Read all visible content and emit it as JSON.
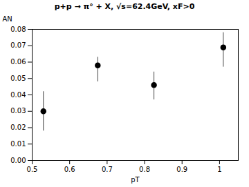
{
  "chart_data": {
    "type": "scatter",
    "title": "p+p → π° + X, √s=62.4GeV, xF>0",
    "xlabel": "pT",
    "ylabel": "AN",
    "x": [
      0.53,
      0.675,
      0.825,
      1.01
    ],
    "values": [
      0.03,
      0.058,
      0.046,
      0.069
    ],
    "yerr_lo": [
      0.012,
      0.01,
      0.009,
      0.012
    ],
    "yerr_hi": [
      0.012,
      0.005,
      0.008,
      0.009
    ],
    "color": "#000000",
    "marker": "circle",
    "xlim": [
      0.5,
      1.05
    ],
    "ylim": [
      0.0,
      0.08
    ],
    "xticks": [
      0.5,
      0.6,
      0.7,
      0.8,
      0.9,
      1
    ],
    "yticks": [
      {
        "value": 0,
        "label": "0.00"
      },
      0.01,
      0.02,
      0.03,
      0.04,
      0.05,
      0.06,
      0.07,
      0.08
    ]
  }
}
